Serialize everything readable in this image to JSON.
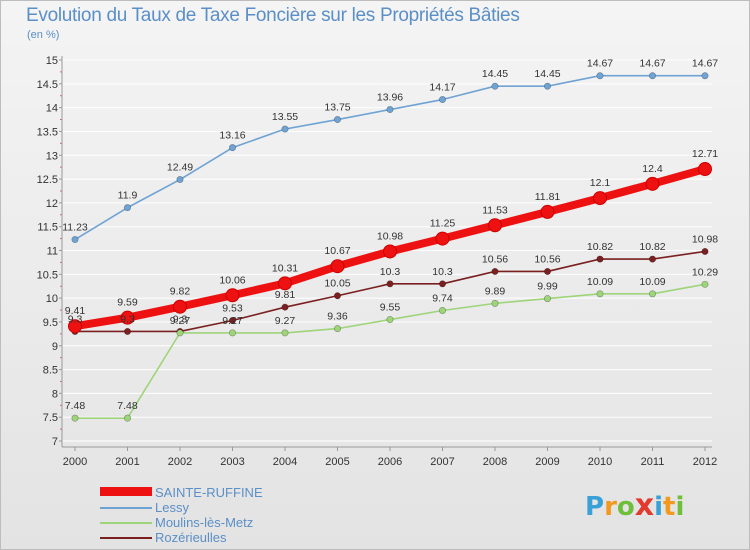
{
  "header": {
    "title": "Evolution du Taux de Taxe Foncière sur les Propriétés Bâties",
    "unit": "(en %)"
  },
  "logo": {
    "letters": [
      "P",
      "r",
      "o",
      "x",
      "i",
      "t",
      "i"
    ],
    "colors": [
      "#3aa0d8",
      "#f29a1f",
      "#6fbf3a",
      "#e23b2e",
      "#3aa0d8",
      "#f29a1f",
      "#6fbf3a"
    ]
  },
  "chart_data": {
    "type": "line",
    "title": "Evolution du Taux de Taxe Foncière sur les Propriétés Bâties",
    "ylabel": "(en %)",
    "categories": [
      "2000",
      "2001",
      "2002",
      "2003",
      "2004",
      "2005",
      "2006",
      "2007",
      "2008",
      "2009",
      "2010",
      "2011",
      "2012"
    ],
    "ylim": [
      7,
      15
    ],
    "yticks": [
      "7",
      "7.5",
      "8",
      "8.5",
      "9",
      "9.5",
      "10",
      "10.5",
      "11",
      "11.5",
      "12",
      "12.5",
      "13",
      "13.5",
      "14",
      "14.5",
      "15"
    ],
    "legend_position": "bottom-left",
    "series": [
      {
        "name": "SAINTE-RUFFINE",
        "color": "#ee1111",
        "values": [
          9.41,
          9.59,
          9.82,
          10.06,
          10.31,
          10.67,
          10.98,
          11.25,
          11.53,
          11.81,
          12.1,
          12.4,
          12.71
        ],
        "labels": [
          "9.41",
          "9.59",
          "9.82",
          "10.06",
          "10.31",
          "10.67",
          "10.98",
          "11.25",
          "11.53",
          "11.81",
          "12.1",
          "12.4",
          "12.71"
        ]
      },
      {
        "name": "Lessy",
        "color": "#6fa3d4",
        "values": [
          11.23,
          11.9,
          12.49,
          13.16,
          13.55,
          13.75,
          13.96,
          14.17,
          14.45,
          14.45,
          14.67,
          14.67,
          14.67
        ],
        "labels": [
          "11.23",
          "11.9",
          "12.49",
          "13.16",
          "13.55",
          "13.75",
          "13.96",
          "14.17",
          "14.45",
          "14.45",
          "14.67",
          "14.67",
          "14.67"
        ]
      },
      {
        "name": "Moulins-lès-Metz",
        "color": "#9ed47a",
        "values": [
          7.48,
          7.48,
          9.27,
          9.27,
          9.27,
          9.36,
          9.55,
          9.74,
          9.89,
          9.99,
          10.09,
          10.09,
          10.29
        ],
        "labels": [
          "7.48",
          "7.48",
          "9.27",
          "9.27",
          "9.27",
          "9.36",
          "9.55",
          "9.74",
          "9.89",
          "9.99",
          "10.09",
          "10.09",
          "10.29"
        ]
      },
      {
        "name": "Rozérieulles",
        "color": "#7a2020",
        "values": [
          9.3,
          9.3,
          9.3,
          9.53,
          9.81,
          10.05,
          10.3,
          10.3,
          10.56,
          10.56,
          10.82,
          10.82,
          10.98
        ],
        "labels": [
          "9.3",
          "9.3",
          "9.3",
          "9.53",
          "9.81",
          "10.05",
          "10.3",
          "10.3",
          "10.56",
          "10.56",
          "10.82",
          "10.82",
          "10.98"
        ]
      }
    ]
  }
}
